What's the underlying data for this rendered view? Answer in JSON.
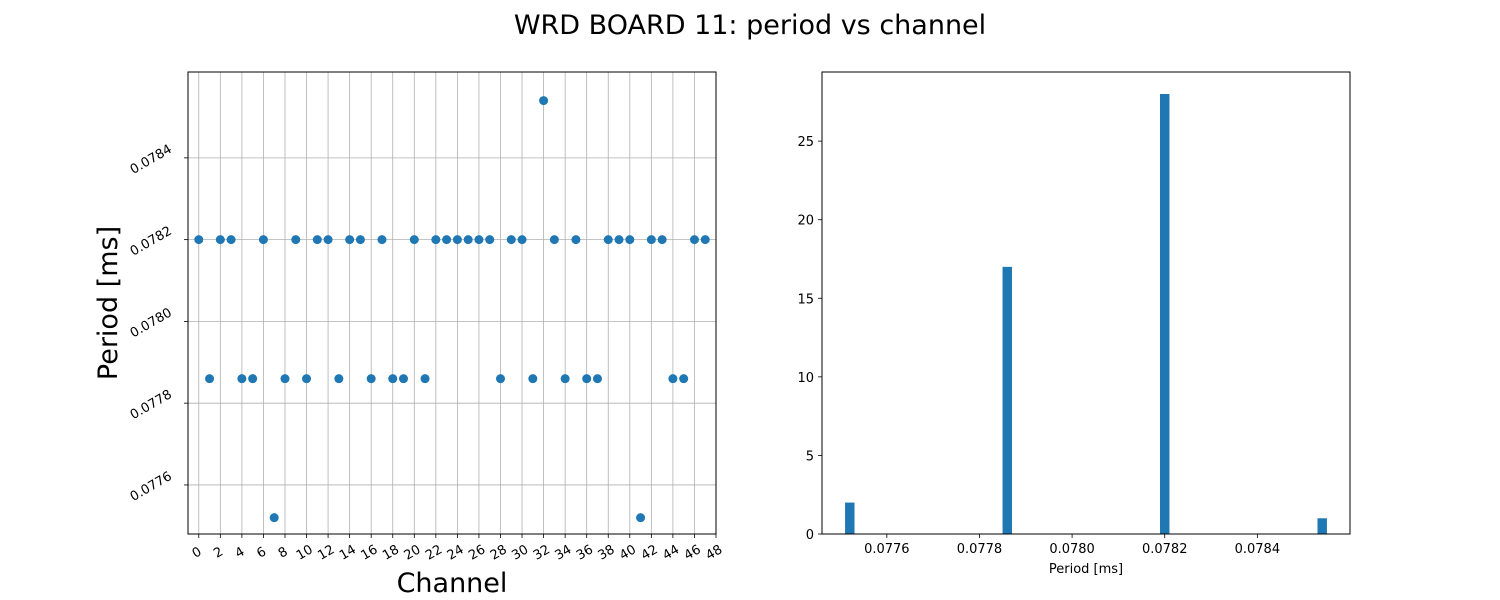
{
  "figure": {
    "title": "WRD BOARD 11: period vs channel"
  },
  "chart_data": [
    {
      "type": "scatter",
      "xlabel": "Channel",
      "ylabel": "Period [ms]",
      "xlim": [
        -1,
        48
      ],
      "ylim": [
        0.07748,
        0.07861
      ],
      "xticks": [
        0,
        2,
        4,
        6,
        8,
        10,
        12,
        14,
        16,
        18,
        20,
        22,
        24,
        26,
        28,
        30,
        32,
        34,
        36,
        38,
        40,
        42,
        44,
        46,
        48
      ],
      "yticks": [
        0.0776,
        0.0778,
        0.078,
        0.0782,
        0.0784
      ],
      "ytick_labels": [
        "0.0776",
        "0.0778",
        "0.0780",
        "0.0782",
        "0.0784"
      ],
      "grid": true,
      "color": "#1f77b4",
      "x": [
        0,
        1,
        2,
        3,
        4,
        5,
        6,
        7,
        8,
        9,
        10,
        11,
        12,
        13,
        14,
        15,
        16,
        17,
        18,
        19,
        20,
        21,
        22,
        23,
        24,
        25,
        26,
        27,
        28,
        29,
        30,
        31,
        32,
        33,
        34,
        35,
        36,
        37,
        38,
        39,
        40,
        41,
        42,
        43,
        44,
        45,
        46,
        47
      ],
      "y": [
        0.0782,
        0.07786,
        0.0782,
        0.0782,
        0.07786,
        0.07786,
        0.0782,
        0.07752,
        0.07786,
        0.0782,
        0.07786,
        0.0782,
        0.0782,
        0.07786,
        0.0782,
        0.0782,
        0.07786,
        0.0782,
        0.07786,
        0.07786,
        0.0782,
        0.07786,
        0.0782,
        0.0782,
        0.0782,
        0.0782,
        0.0782,
        0.0782,
        0.07786,
        0.0782,
        0.0782,
        0.07786,
        0.07854,
        0.0782,
        0.07786,
        0.0782,
        0.07786,
        0.07786,
        0.0782,
        0.0782,
        0.0782,
        0.07752,
        0.0782,
        0.0782,
        0.07786,
        0.07786,
        0.0782,
        0.0782
      ]
    },
    {
      "type": "bar",
      "xlabel": "Period [ms]",
      "ylabel": "",
      "xlim": [
        0.07746,
        0.0786
      ],
      "ylim": [
        0,
        29.4
      ],
      "xticks": [
        0.0776,
        0.0778,
        0.078,
        0.0782,
        0.0784
      ],
      "xtick_labels": [
        "0.0776",
        "0.0778",
        "0.0780",
        "0.0782",
        "0.0784"
      ],
      "yticks": [
        0,
        5,
        10,
        15,
        20,
        25
      ],
      "grid": false,
      "color": "#1f77b4",
      "bar_width": 2.04e-05,
      "x": [
        0.07752,
        0.07786,
        0.0782,
        0.07854
      ],
      "values": [
        2,
        17,
        28,
        1
      ]
    }
  ]
}
